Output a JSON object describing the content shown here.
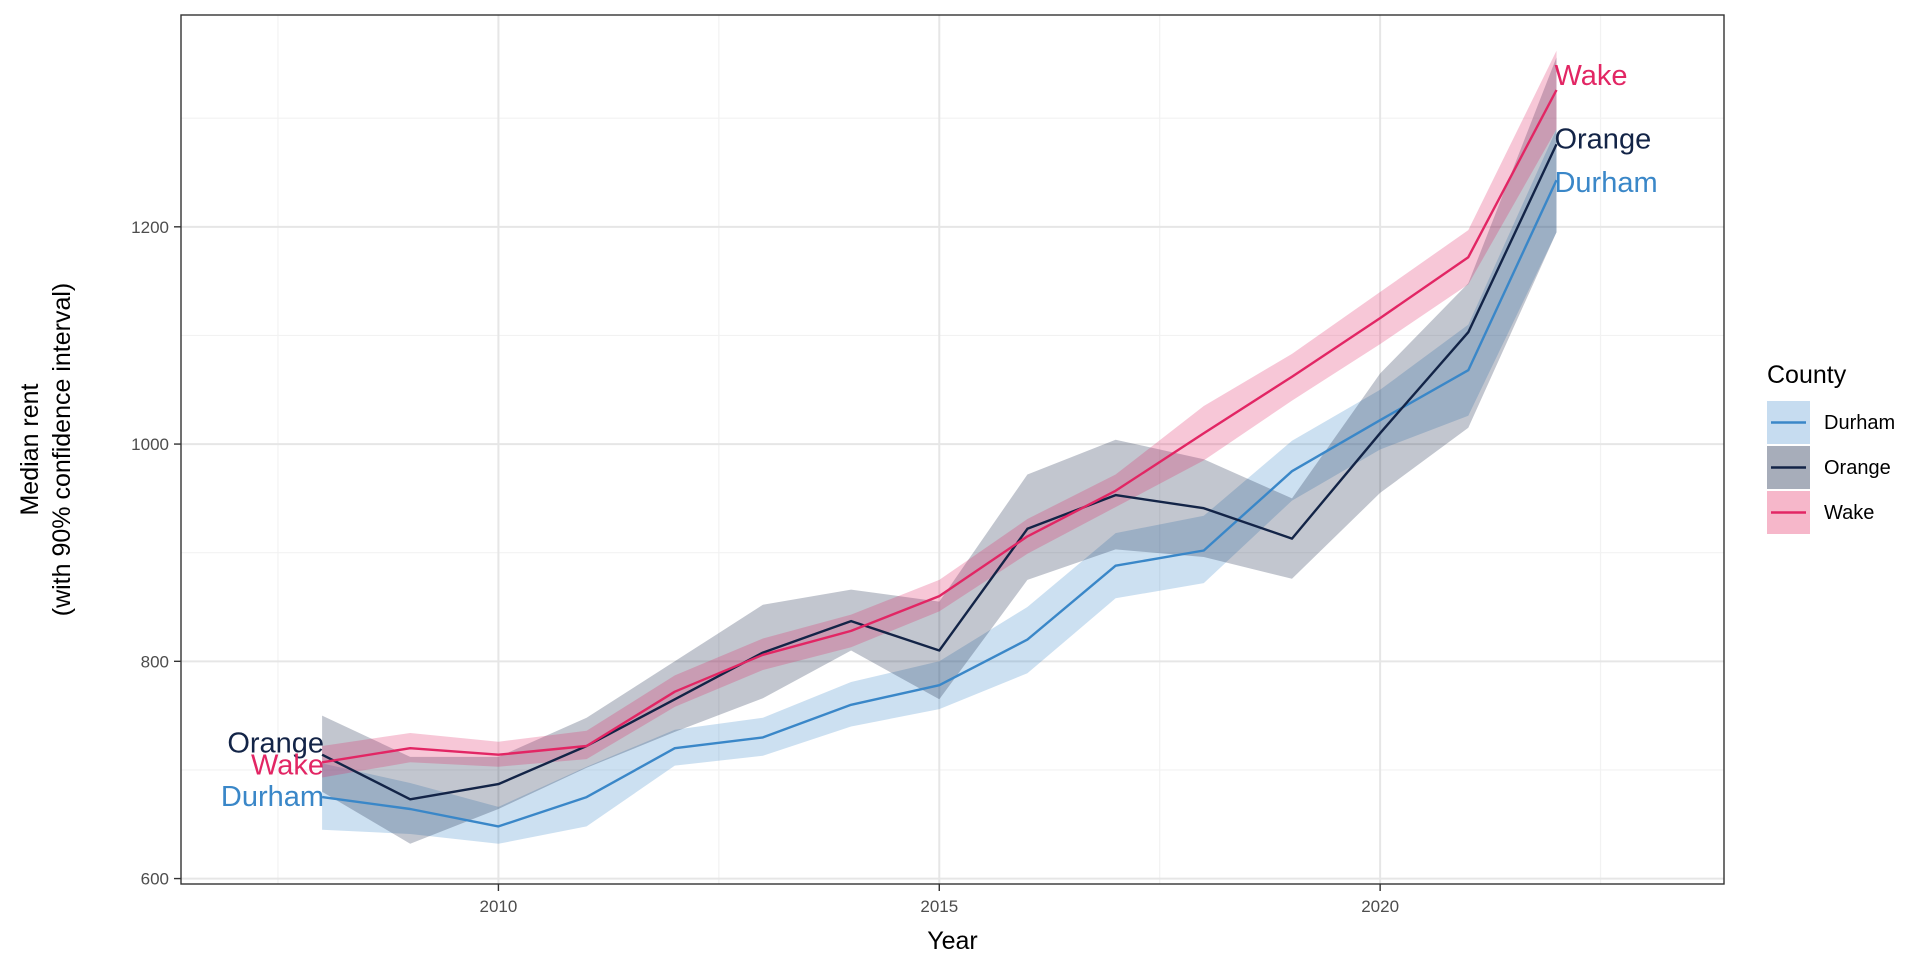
{
  "chart_data": {
    "type": "line",
    "title": "",
    "xlabel": "Year",
    "ylabel": "Median rent\n(with 90% confidence interval)",
    "xlim": [
      2006.4,
      2023.9
    ],
    "ylim": [
      595,
      1395
    ],
    "x_ticks": [
      2010,
      2015,
      2020
    ],
    "y_ticks": [
      600,
      800,
      1000,
      1200
    ],
    "grid": true,
    "legend": {
      "title": "County",
      "placement": "right"
    },
    "x": [
      2008,
      2009,
      2010,
      2011,
      2012,
      2013,
      2014,
      2015,
      2016,
      2017,
      2018,
      2019,
      2020,
      2021,
      2022
    ],
    "series": [
      {
        "name": "Durham",
        "color": "#3a87c8",
        "ribbon_color": "#c6dcf0",
        "values": [
          675,
          664,
          648,
          675,
          720,
          730,
          760,
          778,
          820,
          888,
          902,
          975,
          1022,
          1068,
          1243
        ],
        "lower": [
          645,
          641,
          632,
          648,
          704,
          713,
          740,
          756,
          789,
          858,
          872,
          948,
          995,
          1026,
          1195
        ],
        "upper": [
          706,
          688,
          666,
          703,
          737,
          748,
          781,
          800,
          850,
          918,
          934,
          1003,
          1050,
          1110,
          1290
        ]
      },
      {
        "name": "Orange",
        "color": "#132447",
        "ribbon_color": "#a7adba",
        "values": [
          714,
          673,
          687,
          722,
          765,
          808,
          837,
          810,
          922,
          953,
          941,
          913,
          1010,
          1103,
          1276
        ],
        "lower": [
          680,
          632,
          664,
          702,
          735,
          766,
          810,
          765,
          875,
          903,
          896,
          876,
          955,
          1015,
          1195
        ],
        "upper": [
          750,
          712,
          712,
          748,
          800,
          852,
          866,
          855,
          972,
          1004,
          986,
          950,
          1065,
          1148,
          1356
        ]
      },
      {
        "name": "Wake",
        "color": "#e22664",
        "ribbon_color": "#f6b7ca",
        "values": [
          707,
          720,
          714,
          722,
          772,
          806,
          828,
          860,
          915,
          957,
          1010,
          1062,
          1116,
          1172,
          1326
        ],
        "lower": [
          693,
          707,
          703,
          710,
          758,
          792,
          813,
          846,
          899,
          942,
          985,
          1040,
          1092,
          1147,
          1290
        ],
        "upper": [
          722,
          734,
          726,
          736,
          787,
          821,
          843,
          875,
          931,
          972,
          1035,
          1083,
          1140,
          1197,
          1362
        ]
      }
    ],
    "start_labels": [
      "Orange",
      "Wake",
      "Durham"
    ],
    "end_labels": [
      "Wake",
      "Orange",
      "Durham"
    ]
  }
}
